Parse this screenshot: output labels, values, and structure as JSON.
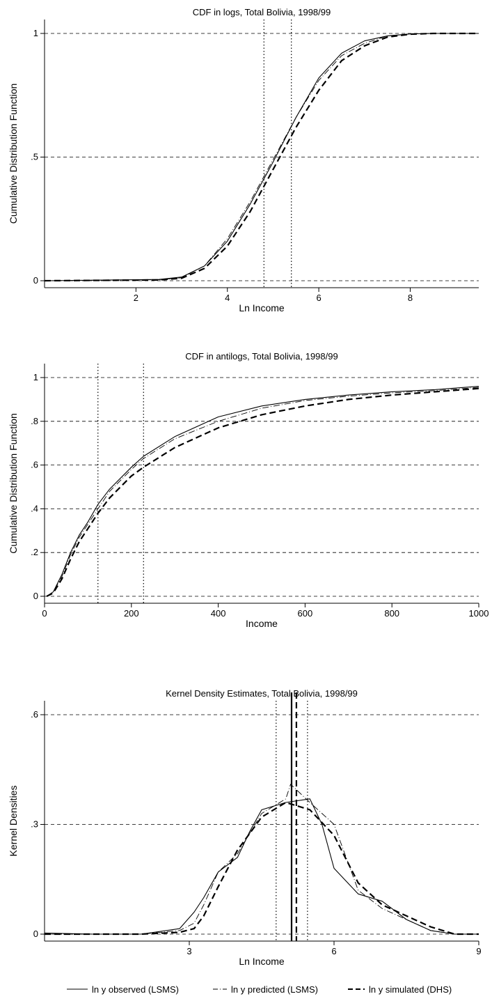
{
  "chart_data": [
    {
      "type": "line",
      "title": "CDF in logs, Total Bolivia, 1998/99",
      "xlabel": "Ln Income",
      "ylabel": "Cumulative Distribution Function",
      "xlim": [
        0,
        9.5
      ],
      "ylim": [
        0,
        1
      ],
      "xticks": [
        2,
        4,
        6,
        8
      ],
      "xtick_labels": [
        "2",
        "4",
        "6",
        "8"
      ],
      "yticks": [
        0,
        0.5,
        1
      ],
      "ytick_labels": [
        "0",
        ".5",
        "1"
      ],
      "grid": "dashed horizontal at y ticks",
      "vlines": [
        4.8,
        5.4
      ],
      "series": [
        {
          "name": "ln y observed (LSMS)",
          "style": "solid",
          "x": [
            0,
            2.5,
            3.0,
            3.5,
            4.0,
            4.5,
            5.0,
            5.5,
            6.0,
            6.5,
            7.0,
            7.5,
            8.0,
            8.5,
            9.0,
            9.5
          ],
          "y": [
            0.0,
            0.005,
            0.015,
            0.06,
            0.16,
            0.31,
            0.48,
            0.66,
            0.82,
            0.92,
            0.97,
            0.99,
            0.998,
            1.0,
            1.0,
            1.0
          ]
        },
        {
          "name": "ln y predicted (LSMS)",
          "style": "dashdot",
          "x": [
            0,
            2.5,
            3.0,
            3.5,
            4.0,
            4.5,
            5.0,
            5.5,
            6.0,
            6.5,
            7.0,
            7.5,
            8.0,
            8.5,
            9.0,
            9.5
          ],
          "y": [
            0.0,
            0.004,
            0.012,
            0.06,
            0.17,
            0.32,
            0.49,
            0.66,
            0.81,
            0.91,
            0.96,
            0.99,
            0.998,
            1.0,
            1.0,
            1.0
          ]
        },
        {
          "name": "ln y simulated (DHS)",
          "style": "dashed",
          "x": [
            0,
            2.5,
            3.0,
            3.5,
            4.0,
            4.5,
            5.0,
            5.5,
            6.0,
            6.5,
            7.0,
            7.5,
            8.0,
            8.5,
            9.0,
            9.5
          ],
          "y": [
            0.0,
            0.003,
            0.01,
            0.05,
            0.14,
            0.28,
            0.45,
            0.62,
            0.77,
            0.89,
            0.95,
            0.985,
            0.997,
            1.0,
            1.0,
            1.0
          ]
        }
      ]
    },
    {
      "type": "line",
      "title": "CDF in antilogs, Total Bolivia, 1998/99",
      "xlabel": "Income",
      "ylabel": "Cumulative Distribution Function",
      "xlim": [
        0,
        1000
      ],
      "ylim": [
        0,
        1
      ],
      "xticks": [
        0,
        200,
        400,
        600,
        800,
        1000
      ],
      "xtick_labels": [
        "0",
        "200",
        "400",
        "600",
        "800",
        "1000"
      ],
      "yticks": [
        0,
        0.2,
        0.4,
        0.6,
        0.8,
        1
      ],
      "ytick_labels": [
        "0",
        ".2",
        ".4",
        ".6",
        ".8",
        "1"
      ],
      "grid": "dashed horizontal at y ticks",
      "vlines": [
        123,
        228
      ],
      "series": [
        {
          "name": "ln y observed (LSMS)",
          "style": "solid",
          "x": [
            5,
            20,
            40,
            60,
            80,
            100,
            123,
            150,
            200,
            228,
            300,
            400,
            500,
            600,
            700,
            800,
            900,
            1000
          ],
          "y": [
            0.0,
            0.02,
            0.1,
            0.2,
            0.28,
            0.34,
            0.42,
            0.49,
            0.59,
            0.64,
            0.73,
            0.82,
            0.87,
            0.9,
            0.92,
            0.935,
            0.945,
            0.96
          ]
        },
        {
          "name": "ln y predicted (LSMS)",
          "style": "dashdot",
          "x": [
            5,
            20,
            40,
            60,
            80,
            100,
            123,
            150,
            200,
            228,
            300,
            400,
            500,
            600,
            700,
            800,
            900,
            1000
          ],
          "y": [
            0.0,
            0.02,
            0.09,
            0.19,
            0.27,
            0.33,
            0.4,
            0.48,
            0.58,
            0.63,
            0.72,
            0.8,
            0.86,
            0.895,
            0.915,
            0.93,
            0.94,
            0.955
          ]
        },
        {
          "name": "ln y simulated (DHS)",
          "style": "dashed",
          "x": [
            5,
            20,
            40,
            60,
            80,
            100,
            123,
            150,
            200,
            228,
            300,
            400,
            500,
            600,
            700,
            800,
            900,
            1000
          ],
          "y": [
            0.0,
            0.015,
            0.08,
            0.17,
            0.25,
            0.31,
            0.38,
            0.45,
            0.55,
            0.59,
            0.68,
            0.77,
            0.83,
            0.87,
            0.9,
            0.92,
            0.935,
            0.95
          ]
        }
      ]
    },
    {
      "type": "line",
      "title": "Kernel Density Estimates, Total Bolivia, 1998/99",
      "xlabel": "Ln Income",
      "ylabel": "Kernel Densities",
      "xlim": [
        0,
        9
      ],
      "ylim": [
        0,
        0.6
      ],
      "xticks": [
        3,
        6,
        9
      ],
      "xtick_labels": [
        "3",
        "6",
        "9"
      ],
      "yticks": [
        0,
        0.3,
        0.6
      ],
      "ytick_labels": [
        "0",
        ".3",
        ".6"
      ],
      "grid": "dashed horizontal at y ticks",
      "vlines_dotted": [
        4.8,
        5.45
      ],
      "vlines_solid": [
        5.12
      ],
      "vlines_dashed": [
        5.22
      ],
      "series": [
        {
          "name": "ln y observed (LSMS)",
          "style": "solid",
          "x": [
            0,
            1,
            2,
            2.8,
            3.1,
            3.3,
            3.6,
            4.0,
            4.25,
            4.5,
            5.0,
            5.5,
            5.75,
            6.0,
            6.5,
            7.0,
            7.5,
            8.0,
            8.5,
            9.0
          ],
          "y": [
            0.003,
            0.0,
            0.0,
            0.015,
            0.06,
            0.1,
            0.17,
            0.21,
            0.28,
            0.34,
            0.36,
            0.37,
            0.3,
            0.18,
            0.11,
            0.09,
            0.04,
            0.01,
            0.0,
            0.0
          ]
        },
        {
          "name": "ln y predicted (LSMS)",
          "style": "dashdot",
          "x": [
            0,
            1,
            2,
            2.8,
            3.1,
            3.3,
            3.6,
            4.0,
            4.5,
            5.0,
            5.1,
            5.5,
            6.0,
            6.5,
            7.0,
            7.5,
            8.0,
            8.5,
            9.0
          ],
          "y": [
            0.0,
            0.0,
            0.0,
            0.01,
            0.03,
            0.08,
            0.17,
            0.22,
            0.33,
            0.37,
            0.41,
            0.36,
            0.3,
            0.12,
            0.07,
            0.04,
            0.01,
            0.0,
            0.0
          ]
        },
        {
          "name": "ln y simulated (DHS)",
          "style": "dashed",
          "x": [
            0,
            1,
            2,
            2.8,
            3.1,
            3.3,
            3.6,
            4.0,
            4.5,
            5.0,
            5.5,
            6.0,
            6.5,
            7.0,
            7.5,
            8.0,
            8.5,
            9.0
          ],
          "y": [
            0.0,
            0.0,
            0.0,
            0.005,
            0.015,
            0.05,
            0.13,
            0.23,
            0.32,
            0.36,
            0.34,
            0.27,
            0.14,
            0.08,
            0.05,
            0.02,
            0.0,
            0.0
          ]
        }
      ]
    }
  ],
  "legend": {
    "items": [
      {
        "label": "ln y observed (LSMS)",
        "style": "solid"
      },
      {
        "label": "ln y predicted (LSMS)",
        "style": "dashdot"
      },
      {
        "label": "ln y simulated (DHS)",
        "style": "dashed"
      }
    ]
  }
}
